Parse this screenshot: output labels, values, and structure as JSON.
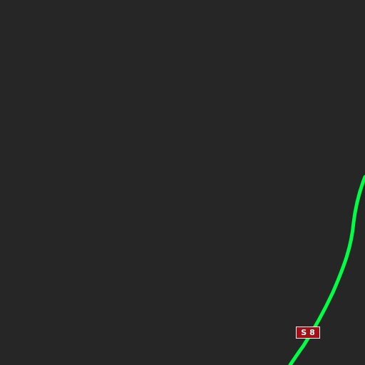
{
  "map": {
    "background_color": "#262626",
    "route": {
      "color": "#00ff44",
      "shield": {
        "prefix": "S",
        "number": "8",
        "background_color": "#a30f17",
        "text_color": "#ffffff",
        "border_color": "#f2f2f2"
      }
    }
  }
}
